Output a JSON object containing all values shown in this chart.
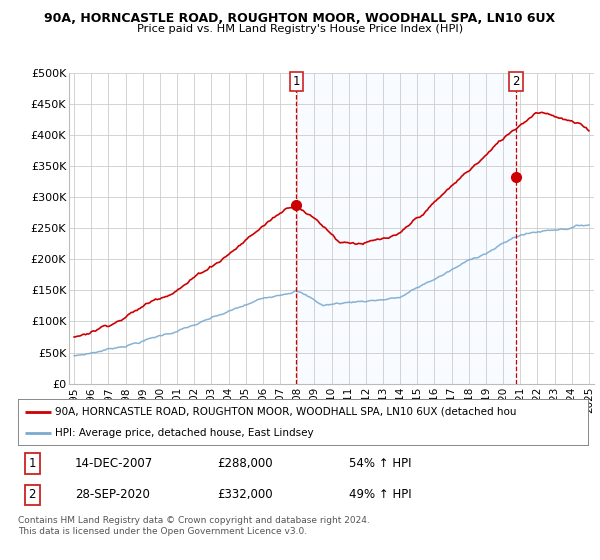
{
  "title1": "90A, HORNCASTLE ROAD, ROUGHTON MOOR, WOODHALL SPA, LN10 6UX",
  "title2": "Price paid vs. HM Land Registry's House Price Index (HPI)",
  "ylabel_ticks": [
    "£0",
    "£50K",
    "£100K",
    "£150K",
    "£200K",
    "£250K",
    "£300K",
    "£350K",
    "£400K",
    "£450K",
    "£500K"
  ],
  "ytick_values": [
    0,
    50000,
    100000,
    150000,
    200000,
    250000,
    300000,
    350000,
    400000,
    450000,
    500000
  ],
  "xlim_start": 1994.7,
  "xlim_end": 2025.3,
  "ylim_min": 0,
  "ylim_max": 500000,
  "hpi_color": "#7aaad0",
  "price_color": "#cc0000",
  "shade_color": "#ddeeff",
  "marker1_year": 2007.95,
  "marker1_value": 288000,
  "marker1_label": "1",
  "marker2_year": 2020.75,
  "marker2_value": 332000,
  "marker2_label": "2",
  "legend_line1": "90A, HORNCASTLE ROAD, ROUGHTON MOOR, WOODHALL SPA, LN10 6UX (detached hou",
  "legend_line2": "HPI: Average price, detached house, East Lindsey",
  "annotation1_num": "1",
  "annotation1_date": "14-DEC-2007",
  "annotation1_price": "£288,000",
  "annotation1_hpi": "54% ↑ HPI",
  "annotation2_num": "2",
  "annotation2_date": "28-SEP-2020",
  "annotation2_price": "£332,000",
  "annotation2_hpi": "49% ↑ HPI",
  "footer": "Contains HM Land Registry data © Crown copyright and database right 2024.\nThis data is licensed under the Open Government Licence v3.0.",
  "background_color": "#ffffff",
  "grid_color": "#cccccc"
}
